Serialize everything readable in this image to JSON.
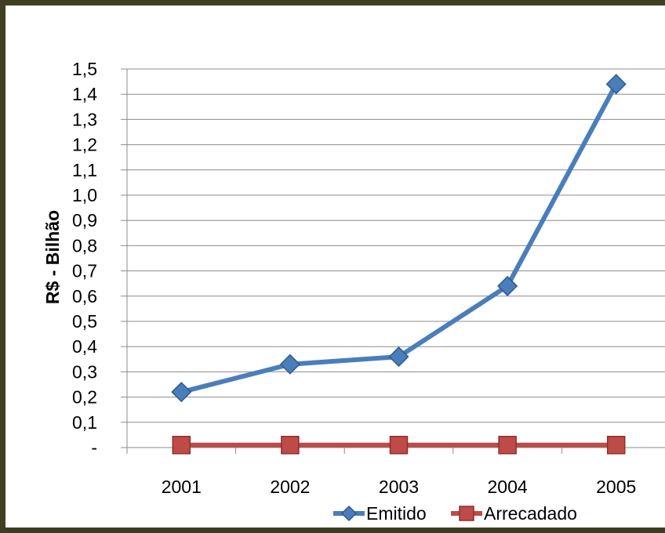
{
  "chart_data": {
    "type": "line",
    "title": "",
    "xlabel": "",
    "ylabel": "R$ - Bilhão",
    "categories": [
      "2001",
      "2002",
      "2003",
      "2004",
      "2005"
    ],
    "ylim": [
      0,
      1.5
    ],
    "y_ticks": [
      "-",
      "0,1",
      "0,2",
      "0,3",
      "0,4",
      "0,5",
      "0,6",
      "0,7",
      "0,8",
      "0,9",
      "1,0",
      "1,1",
      "1,2",
      "1,3",
      "1,4",
      "1,5"
    ],
    "grid": true,
    "legend_position": "bottom",
    "series": [
      {
        "name": "Emitido",
        "values": [
          0.22,
          0.33,
          0.36,
          0.64,
          1.44
        ],
        "color": "#4a7ebb",
        "marker": "diamond"
      },
      {
        "name": "Arrecadado",
        "values": [
          0.01,
          0.01,
          0.01,
          0.01,
          0.01
        ],
        "color": "#be4b48",
        "marker": "square"
      }
    ]
  }
}
